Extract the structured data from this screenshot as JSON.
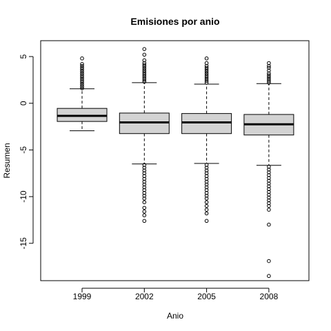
{
  "chart_data": {
    "type": "boxplot",
    "title": "Emisiones por anio",
    "xlabel": "Anio",
    "ylabel": "Resumen",
    "categories": [
      "1999",
      "2002",
      "2005",
      "2008"
    ],
    "ylim": [
      -19,
      6.7
    ],
    "yticks": [
      5,
      0,
      -5,
      -10,
      -15
    ],
    "ytick_labels": [
      "5",
      "0",
      "-5",
      "-10",
      "-15"
    ],
    "box_fill": "#d3d3d3",
    "boxes": [
      {
        "category": "1999",
        "whisker_low": -2.95,
        "q1": -1.95,
        "median": -1.35,
        "q3": -0.55,
        "whisker_high": 1.55,
        "outliers_high": [
          1.6,
          1.8,
          2.0,
          2.2,
          2.4,
          2.6,
          2.8,
          3.0,
          3.2,
          3.4,
          3.6,
          3.8,
          4.0,
          4.2,
          4.8
        ],
        "outliers_low": []
      },
      {
        "category": "2002",
        "whisker_low": -6.5,
        "q1": -3.25,
        "median": -2.05,
        "q3": -1.05,
        "whisker_high": 2.2,
        "outliers_high": [
          2.3,
          2.5,
          2.7,
          2.9,
          3.1,
          3.3,
          3.5,
          3.7,
          3.9,
          4.1,
          4.3,
          4.6,
          5.2,
          5.8
        ],
        "outliers_low": [
          -6.6,
          -6.9,
          -7.2,
          -7.5,
          -7.8,
          -8.1,
          -8.4,
          -8.7,
          -9.0,
          -9.3,
          -9.6,
          -9.9,
          -10.2,
          -10.6,
          -11.2,
          -11.6,
          -12.0,
          -12.6
        ]
      },
      {
        "category": "2005",
        "whisker_low": -6.45,
        "q1": -3.25,
        "median": -2.05,
        "q3": -1.1,
        "whisker_high": 2.05,
        "outliers_high": [
          2.2,
          2.4,
          2.6,
          2.8,
          3.0,
          3.2,
          3.4,
          3.6,
          3.8,
          4.0,
          4.3,
          4.8
        ],
        "outliers_low": [
          -6.6,
          -6.9,
          -7.2,
          -7.5,
          -7.8,
          -8.1,
          -8.4,
          -8.7,
          -9.0,
          -9.3,
          -9.6,
          -9.9,
          -10.2,
          -10.6,
          -11.0,
          -11.4,
          -11.8,
          -12.6
        ]
      },
      {
        "category": "2008",
        "whisker_low": -6.65,
        "q1": -3.4,
        "median": -2.25,
        "q3": -1.2,
        "whisker_high": 2.1,
        "outliers_high": [
          2.2,
          2.4,
          2.6,
          2.8,
          3.0,
          3.2,
          3.5,
          3.8,
          4.0,
          4.3
        ],
        "outliers_low": [
          -6.8,
          -7.1,
          -7.4,
          -7.7,
          -8.0,
          -8.3,
          -8.6,
          -8.9,
          -9.2,
          -9.5,
          -9.8,
          -10.1,
          -10.4,
          -10.7,
          -11.0,
          -11.4,
          -13.0,
          -16.9,
          -18.5
        ]
      }
    ],
    "grid": false,
    "legend": "none"
  }
}
